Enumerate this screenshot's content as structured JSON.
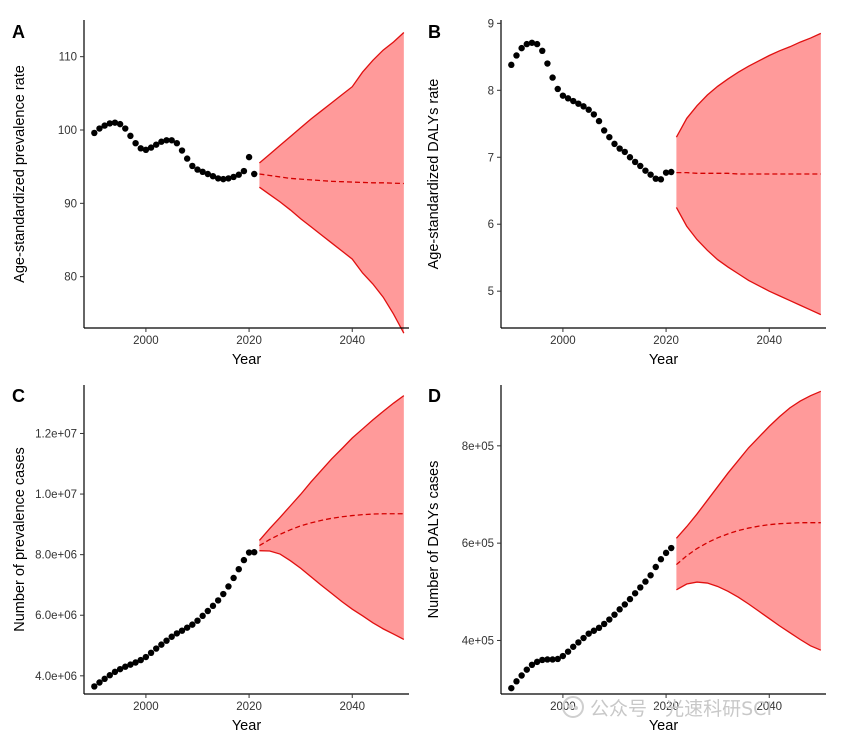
{
  "chart_data": [
    {
      "panel_letter": "A",
      "type": "scatter",
      "xlabel": "Year",
      "ylabel": "Age-standardized prevalence rate",
      "xlim": [
        1988,
        2051
      ],
      "ylim": [
        73,
        115
      ],
      "xticks": [
        2000,
        2020,
        2040
      ],
      "yticks": [
        80,
        90,
        100,
        110
      ],
      "ytick_labels": [
        "80",
        "90",
        "100",
        "110"
      ],
      "grid": false,
      "observed": {
        "x": [
          1990,
          1991,
          1992,
          1993,
          1994,
          1995,
          1996,
          1997,
          1998,
          1999,
          2000,
          2001,
          2002,
          2003,
          2004,
          2005,
          2006,
          2007,
          2008,
          2009,
          2010,
          2011,
          2012,
          2013,
          2014,
          2015,
          2016,
          2017,
          2018,
          2019,
          2020,
          2021
        ],
        "y": [
          99.6,
          100.2,
          100.6,
          100.9,
          101.0,
          100.8,
          100.2,
          99.2,
          98.2,
          97.5,
          97.3,
          97.6,
          98.0,
          98.4,
          98.6,
          98.6,
          98.2,
          97.2,
          96.1,
          95.1,
          94.6,
          94.3,
          94.0,
          93.7,
          93.4,
          93.3,
          93.4,
          93.6,
          93.9,
          94.4,
          96.3,
          94.0
        ]
      },
      "forecast": {
        "x": [
          2022,
          2024,
          2026,
          2028,
          2030,
          2032,
          2034,
          2036,
          2038,
          2040,
          2042,
          2044,
          2046,
          2048,
          2050
        ],
        "mean": [
          94.0,
          93.8,
          93.6,
          93.4,
          93.3,
          93.2,
          93.1,
          93.0,
          92.95,
          92.9,
          92.85,
          92.8,
          92.8,
          92.75,
          92.7
        ],
        "upper": [
          95.5,
          96.7,
          97.9,
          99.1,
          100.3,
          101.5,
          102.6,
          103.7,
          104.8,
          105.9,
          107.9,
          109.5,
          110.9,
          112.0,
          113.3
        ],
        "lower": [
          92.2,
          91.2,
          90.2,
          89.1,
          87.9,
          86.8,
          85.7,
          84.6,
          83.5,
          82.4,
          80.5,
          79.0,
          77.2,
          74.9,
          72.3
        ]
      }
    },
    {
      "panel_letter": "B",
      "type": "scatter",
      "xlabel": "Year",
      "ylabel": "Age-standardized DALYs rate",
      "xlim": [
        1988,
        2051
      ],
      "ylim": [
        4.45,
        9.05
      ],
      "xticks": [
        2000,
        2020,
        2040
      ],
      "yticks": [
        5,
        6,
        7,
        8,
        9
      ],
      "ytick_labels": [
        "5",
        "6",
        "7",
        "8",
        "9"
      ],
      "grid": false,
      "observed": {
        "x": [
          1990,
          1991,
          1992,
          1993,
          1994,
          1995,
          1996,
          1997,
          1998,
          1999,
          2000,
          2001,
          2002,
          2003,
          2004,
          2005,
          2006,
          2007,
          2008,
          2009,
          2010,
          2011,
          2012,
          2013,
          2014,
          2015,
          2016,
          2017,
          2018,
          2019,
          2020,
          2021
        ],
        "y": [
          8.38,
          8.52,
          8.63,
          8.69,
          8.71,
          8.69,
          8.59,
          8.4,
          8.19,
          8.02,
          7.92,
          7.88,
          7.84,
          7.8,
          7.76,
          7.71,
          7.64,
          7.54,
          7.4,
          7.3,
          7.2,
          7.13,
          7.08,
          7.0,
          6.93,
          6.87,
          6.8,
          6.74,
          6.68,
          6.67,
          6.77,
          6.78
        ]
      },
      "forecast": {
        "x": [
          2022,
          2024,
          2026,
          2028,
          2030,
          2032,
          2034,
          2036,
          2038,
          2040,
          2042,
          2044,
          2046,
          2048,
          2050
        ],
        "mean": [
          6.77,
          6.77,
          6.76,
          6.76,
          6.76,
          6.76,
          6.75,
          6.75,
          6.75,
          6.75,
          6.75,
          6.75,
          6.75,
          6.75,
          6.75
        ],
        "upper": [
          7.3,
          7.58,
          7.77,
          7.93,
          8.06,
          8.17,
          8.27,
          8.36,
          8.44,
          8.52,
          8.59,
          8.65,
          8.72,
          8.78,
          8.85
        ],
        "lower": [
          6.25,
          5.97,
          5.77,
          5.61,
          5.47,
          5.36,
          5.26,
          5.16,
          5.08,
          5.0,
          4.93,
          4.86,
          4.79,
          4.72,
          4.65
        ]
      }
    },
    {
      "panel_letter": "C",
      "type": "scatter",
      "xlabel": "Year",
      "ylabel": "Number of prevalence cases",
      "xlim": [
        1988,
        2051
      ],
      "ylim": [
        3400000,
        13600000
      ],
      "xticks": [
        2000,
        2020,
        2040
      ],
      "yticks": [
        4000000,
        6000000,
        8000000,
        10000000,
        12000000
      ],
      "ytick_labels": [
        "4.0e+06",
        "6.0e+06",
        "8.0e+06",
        "1.0e+07",
        "1.2e+07"
      ],
      "grid": false,
      "observed": {
        "x": [
          1990,
          1991,
          1992,
          1993,
          1994,
          1995,
          1996,
          1997,
          1998,
          1999,
          2000,
          2001,
          2002,
          2003,
          2004,
          2005,
          2006,
          2007,
          2008,
          2009,
          2010,
          2011,
          2012,
          2013,
          2014,
          2015,
          2016,
          2017,
          2018,
          2019,
          2020,
          2021
        ],
        "y": [
          3650000,
          3780000,
          3900000,
          4020000,
          4130000,
          4220000,
          4300000,
          4370000,
          4440000,
          4520000,
          4620000,
          4760000,
          4900000,
          5030000,
          5160000,
          5290000,
          5400000,
          5490000,
          5590000,
          5690000,
          5820000,
          5980000,
          6140000,
          6310000,
          6490000,
          6700000,
          6950000,
          7230000,
          7520000,
          7820000,
          8070000,
          8080000
        ]
      },
      "forecast": {
        "x": [
          2022,
          2024,
          2026,
          2028,
          2030,
          2032,
          2034,
          2036,
          2038,
          2040,
          2042,
          2044,
          2046,
          2048,
          2050
        ],
        "mean": [
          8300000,
          8500000,
          8670000,
          8820000,
          8950000,
          9050000,
          9130000,
          9200000,
          9250000,
          9290000,
          9320000,
          9340000,
          9350000,
          9350000,
          9350000
        ],
        "upper": [
          8470000,
          8860000,
          9230000,
          9610000,
          9990000,
          10400000,
          10780000,
          11160000,
          11500000,
          11850000,
          12150000,
          12450000,
          12730000,
          13000000,
          13250000
        ],
        "lower": [
          8130000,
          8120000,
          8020000,
          7800000,
          7550000,
          7270000,
          6990000,
          6720000,
          6450000,
          6200000,
          5980000,
          5750000,
          5550000,
          5380000,
          5200000
        ]
      }
    },
    {
      "panel_letter": "D",
      "type": "scatter",
      "xlabel": "Year",
      "ylabel": "Number of DALYs cases",
      "xlim": [
        1988,
        2051
      ],
      "ylim": [
        290000,
        925000
      ],
      "xticks": [
        2000,
        2020,
        2040
      ],
      "yticks": [
        400000,
        600000,
        800000
      ],
      "ytick_labels": [
        "4e+05",
        "6e+05",
        "8e+05"
      ],
      "grid": false,
      "observed": {
        "x": [
          1990,
          1991,
          1992,
          1993,
          1994,
          1995,
          1996,
          1997,
          1998,
          1999,
          2000,
          2001,
          2002,
          2003,
          2004,
          2005,
          2006,
          2007,
          2008,
          2009,
          2010,
          2011,
          2012,
          2013,
          2014,
          2015,
          2016,
          2017,
          2018,
          2019,
          2020,
          2021
        ],
        "y": [
          302000,
          316000,
          328000,
          340000,
          350000,
          356000,
          360000,
          361000,
          361000,
          362000,
          368000,
          377000,
          387000,
          396000,
          405000,
          414000,
          420000,
          426000,
          434000,
          443000,
          453000,
          464000,
          474000,
          485000,
          497000,
          509000,
          521000,
          534000,
          551000,
          567000,
          580000,
          590000
        ]
      },
      "forecast": {
        "x": [
          2022,
          2024,
          2026,
          2028,
          2030,
          2032,
          2034,
          2036,
          2038,
          2040,
          2042,
          2044,
          2046,
          2048,
          2050
        ],
        "mean": [
          556000,
          574000,
          589000,
          601000,
          611000,
          619000,
          626000,
          631000,
          635000,
          638000,
          640000,
          641000,
          642000,
          642000,
          642000
        ],
        "upper": [
          610000,
          634000,
          660000,
          688000,
          716000,
          744000,
          770000,
          796000,
          818000,
          840000,
          860000,
          878000,
          892000,
          903000,
          912000
        ],
        "lower": [
          504000,
          516000,
          520000,
          518000,
          511000,
          501000,
          489000,
          475000,
          460000,
          445000,
          430000,
          416000,
          402000,
          389000,
          380000
        ]
      }
    }
  ],
  "colors": {
    "point": "#000000",
    "ribbon_fill": "#ff9a9a",
    "ribbon_line": "#e01010",
    "forecast_line": "#d40000"
  },
  "watermark": {
    "text": "公众号 · 光速科研SCI"
  }
}
